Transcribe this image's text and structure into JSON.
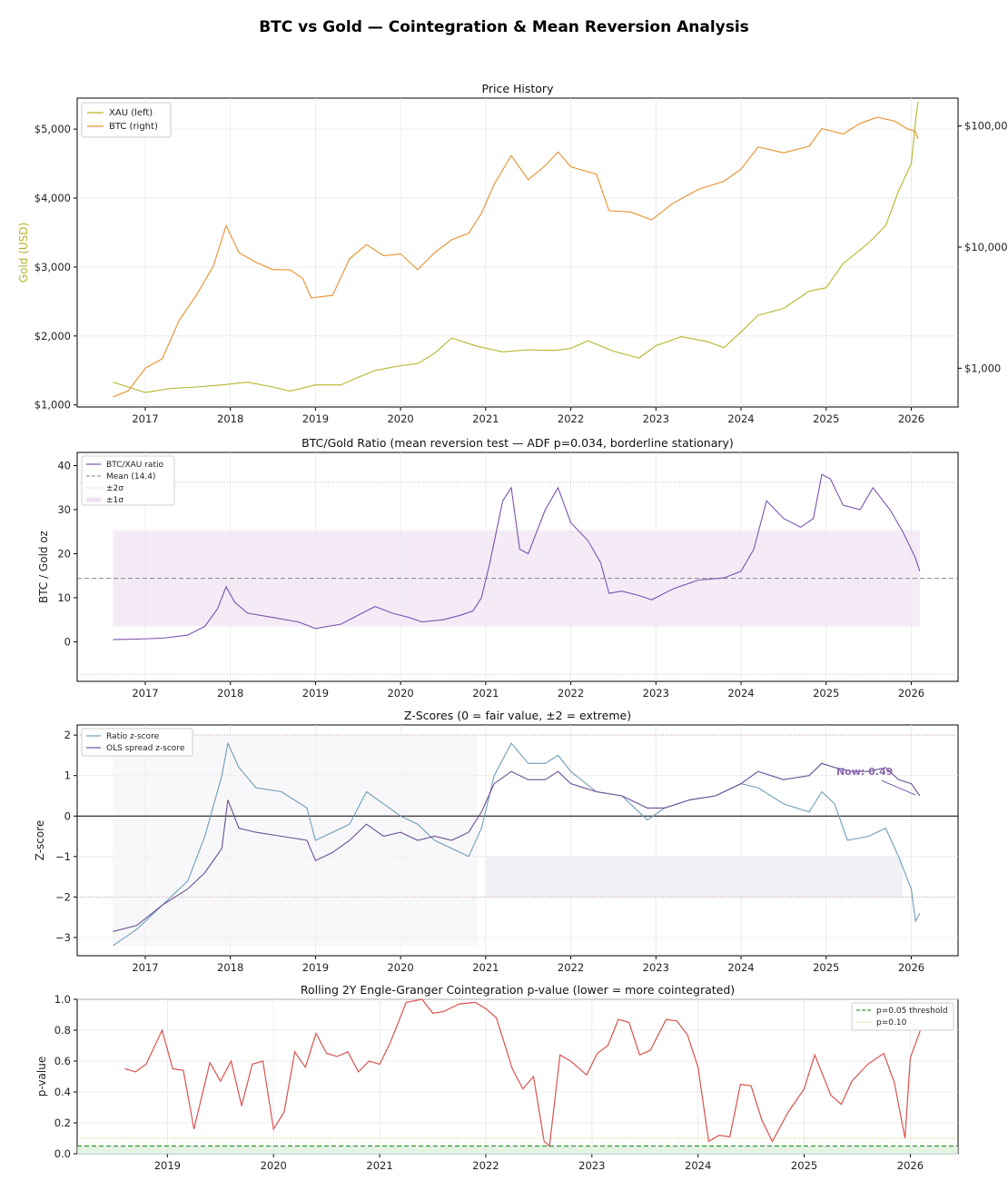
{
  "figure_title": "BTC vs Gold — Cointegration & Mean Reversion Analysis",
  "colors": {
    "gold": "#b5b52a",
    "btc": "#e8902a",
    "ratio": "#7a52b0",
    "ratio_z": "#6f9db8",
    "ols_z": "#6b4f94",
    "pval": "#d9534f",
    "threshold": "#2e9a2e",
    "grid": "#e8e8e8"
  },
  "chart_data": [
    {
      "id": "price",
      "type": "line",
      "title": "Price History",
      "ylabel": "Gold (USD)",
      "ylabel_right": "",
      "x_ticks": [
        "2017",
        "2018",
        "2019",
        "2020",
        "2021",
        "2022",
        "2023",
        "2024",
        "2025",
        "2026"
      ],
      "y_ticks_left": [
        "$1,000",
        "$2,000",
        "$3,000",
        "$4,000",
        "$5,000"
      ],
      "y_ticks_right": [
        "$1,000",
        "$10,000",
        "$100,00"
      ],
      "ylim_left": [
        970,
        5450
      ],
      "ylim_right_log10": [
        2.68,
        5.23
      ],
      "legend": [
        "XAU (left)",
        "BTC (right)"
      ],
      "series": [
        {
          "name": "XAU (left)",
          "axis": "left",
          "x": [
            2016.62,
            2016.8,
            2017.0,
            2017.3,
            2017.6,
            2017.9,
            2018.2,
            2018.5,
            2018.7,
            2019.0,
            2019.3,
            2019.5,
            2019.7,
            2020.0,
            2020.2,
            2020.4,
            2020.6,
            2020.9,
            2021.2,
            2021.5,
            2021.8,
            2022.0,
            2022.2,
            2022.5,
            2022.8,
            2023.0,
            2023.3,
            2023.6,
            2023.8,
            2024.0,
            2024.2,
            2024.5,
            2024.8,
            2025.0,
            2025.2,
            2025.5,
            2025.7,
            2025.85,
            2026.0,
            2026.05,
            2026.08
          ],
          "y": [
            1330,
            1260,
            1180,
            1240,
            1260,
            1290,
            1330,
            1260,
            1200,
            1290,
            1290,
            1400,
            1500,
            1570,
            1600,
            1750,
            1970,
            1850,
            1770,
            1800,
            1790,
            1820,
            1930,
            1780,
            1680,
            1860,
            1990,
            1920,
            1830,
            2060,
            2300,
            2400,
            2650,
            2700,
            3050,
            3350,
            3600,
            4100,
            4500,
            5100,
            5400
          ]
        },
        {
          "name": "BTC (right)",
          "axis": "right",
          "x": [
            2016.62,
            2016.8,
            2017.0,
            2017.2,
            2017.4,
            2017.6,
            2017.8,
            2017.95,
            2018.1,
            2018.3,
            2018.5,
            2018.7,
            2018.85,
            2018.95,
            2019.2,
            2019.4,
            2019.6,
            2019.8,
            2020.0,
            2020.2,
            2020.4,
            2020.6,
            2020.8,
            2020.95,
            2021.1,
            2021.3,
            2021.5,
            2021.7,
            2021.85,
            2022.0,
            2022.3,
            2022.45,
            2022.7,
            2022.95,
            2023.2,
            2023.5,
            2023.8,
            2024.0,
            2024.2,
            2024.5,
            2024.8,
            2024.95,
            2025.2,
            2025.4,
            2025.6,
            2025.8,
            2025.95,
            2026.05,
            2026.08
          ],
          "y": [
            580,
            650,
            1000,
            1200,
            2500,
            4000,
            7000,
            15000,
            9000,
            7500,
            6500,
            6500,
            5500,
            3800,
            4000,
            8000,
            10500,
            8500,
            8800,
            6500,
            9000,
            11500,
            13000,
            19000,
            33000,
            57000,
            36000,
            47000,
            61000,
            46000,
            40000,
            20000,
            19500,
            16800,
            23000,
            30000,
            35000,
            44000,
            67000,
            60000,
            68000,
            95000,
            86000,
            105000,
            118000,
            110000,
            95000,
            90000,
            78000
          ]
        }
      ]
    },
    {
      "id": "ratio",
      "type": "line",
      "title": "BTC/Gold Ratio (mean reversion test — ADF p=0.034, borderline stationary)",
      "ylabel": "BTC / Gold oz",
      "x_ticks": [
        "2017",
        "2018",
        "2019",
        "2020",
        "2021",
        "2022",
        "2023",
        "2024",
        "2025",
        "2026"
      ],
      "y_ticks": [
        "0",
        "10",
        "20",
        "30",
        "40"
      ],
      "ylim": [
        -9,
        43
      ],
      "mean": 14.4,
      "sigma": 10.9,
      "legend": [
        "BTC/XAU ratio",
        "Mean (14.4)",
        "±2σ",
        "±1σ"
      ],
      "x": [
        2016.62,
        2016.9,
        2017.2,
        2017.5,
        2017.7,
        2017.85,
        2017.95,
        2018.05,
        2018.2,
        2018.5,
        2018.8,
        2019.0,
        2019.3,
        2019.5,
        2019.7,
        2019.9,
        2020.1,
        2020.25,
        2020.5,
        2020.7,
        2020.85,
        2020.95,
        2021.05,
        2021.2,
        2021.3,
        2021.4,
        2021.5,
        2021.7,
        2021.85,
        2022.0,
        2022.2,
        2022.35,
        2022.45,
        2022.6,
        2022.8,
        2022.95,
        2023.2,
        2023.5,
        2023.8,
        2024.0,
        2024.15,
        2024.3,
        2024.5,
        2024.7,
        2024.85,
        2024.95,
        2025.05,
        2025.2,
        2025.4,
        2025.55,
        2025.75,
        2025.9,
        2026.0,
        2026.05,
        2026.1
      ],
      "y": [
        0.5,
        0.6,
        0.8,
        1.5,
        3.5,
        7.5,
        12.5,
        9.0,
        6.5,
        5.5,
        4.5,
        3.0,
        4.0,
        6.0,
        8.0,
        6.5,
        5.5,
        4.5,
        5.0,
        6.0,
        7.0,
        10.0,
        18.0,
        32.0,
        35.0,
        21.0,
        20.0,
        30.0,
        35.0,
        27.0,
        23.0,
        18.0,
        11.0,
        11.5,
        10.5,
        9.5,
        12.0,
        14.0,
        14.5,
        16.0,
        21.0,
        32.0,
        28.0,
        26.0,
        28.0,
        38.0,
        37.0,
        31.0,
        30.0,
        35.0,
        30.0,
        25.0,
        21.0,
        19.0,
        16.0
      ]
    },
    {
      "id": "zscore",
      "type": "line",
      "title": "Z-Scores (0 = fair value, ±2 = extreme)",
      "ylabel": "Z-score",
      "x_ticks": [
        "2017",
        "2018",
        "2019",
        "2020",
        "2021",
        "2022",
        "2023",
        "2024",
        "2025",
        "2026"
      ],
      "y_ticks": [
        "−3",
        "−2",
        "−1",
        "0",
        "1",
        "2"
      ],
      "ylim": [
        -3.45,
        2.25
      ],
      "legend": [
        "Ratio z-score",
        "OLS spread z-score"
      ],
      "annotation": "Now: 0.49",
      "series": [
        {
          "name": "Ratio z-score",
          "x": [
            2016.62,
            2016.9,
            2017.2,
            2017.5,
            2017.7,
            2017.9,
            2017.97,
            2018.1,
            2018.3,
            2018.6,
            2018.9,
            2019.0,
            2019.2,
            2019.4,
            2019.6,
            2019.8,
            2020.0,
            2020.2,
            2020.4,
            2020.6,
            2020.8,
            2020.95,
            2021.1,
            2021.3,
            2021.5,
            2021.7,
            2021.85,
            2022.0,
            2022.3,
            2022.6,
            2022.9,
            2023.1,
            2023.4,
            2023.7,
            2024.0,
            2024.2,
            2024.5,
            2024.8,
            2024.95,
            2025.1,
            2025.25,
            2025.5,
            2025.7,
            2025.85,
            2026.0,
            2026.05,
            2026.1
          ],
          "y": [
            -3.2,
            -2.8,
            -2.2,
            -1.6,
            -0.5,
            1.0,
            1.8,
            1.2,
            0.7,
            0.6,
            0.2,
            -0.6,
            -0.4,
            -0.2,
            0.6,
            0.3,
            0.0,
            -0.2,
            -0.6,
            -0.8,
            -1.0,
            -0.3,
            1.0,
            1.8,
            1.3,
            1.3,
            1.5,
            1.1,
            0.6,
            0.5,
            -0.1,
            0.2,
            0.4,
            0.5,
            0.8,
            0.7,
            0.3,
            0.1,
            0.6,
            0.3,
            -0.6,
            -0.5,
            -0.3,
            -1.0,
            -1.8,
            -2.6,
            -2.4
          ]
        },
        {
          "name": "OLS spread z-score",
          "x": [
            2016.62,
            2016.9,
            2017.2,
            2017.5,
            2017.7,
            2017.9,
            2017.97,
            2018.1,
            2018.3,
            2018.6,
            2018.9,
            2019.0,
            2019.2,
            2019.4,
            2019.6,
            2019.8,
            2020.0,
            2020.2,
            2020.4,
            2020.6,
            2020.8,
            2020.95,
            2021.1,
            2021.3,
            2021.5,
            2021.7,
            2021.85,
            2022.0,
            2022.3,
            2022.6,
            2022.9,
            2023.1,
            2023.4,
            2023.7,
            2024.0,
            2024.2,
            2024.5,
            2024.8,
            2024.95,
            2025.1,
            2025.3,
            2025.5,
            2025.7,
            2025.85,
            2026.0,
            2026.1
          ],
          "y": [
            -2.85,
            -2.7,
            -2.2,
            -1.8,
            -1.4,
            -0.8,
            0.4,
            -0.3,
            -0.4,
            -0.5,
            -0.6,
            -1.1,
            -0.9,
            -0.6,
            -0.2,
            -0.5,
            -0.4,
            -0.6,
            -0.5,
            -0.6,
            -0.4,
            0.1,
            0.8,
            1.1,
            0.9,
            0.9,
            1.1,
            0.8,
            0.6,
            0.5,
            0.2,
            0.2,
            0.4,
            0.5,
            0.8,
            1.1,
            0.9,
            1.0,
            1.3,
            1.2,
            1.1,
            1.1,
            1.2,
            0.9,
            0.8,
            0.5
          ]
        }
      ]
    },
    {
      "id": "pvalue",
      "type": "line",
      "title": "Rolling 2Y Engle-Granger Cointegration p-value (lower = more cointegrated)",
      "ylabel": "p-value",
      "x_ticks": [
        "2019",
        "2020",
        "2021",
        "2022",
        "2023",
        "2024",
        "2025",
        "2026"
      ],
      "y_ticks": [
        "0.0",
        "0.2",
        "0.4",
        "0.6",
        "0.8",
        "1.0"
      ],
      "ylim": [
        0,
        1
      ],
      "legend": [
        "p=0.05 threshold",
        "p=0.10"
      ],
      "threshold_1": 0.05,
      "threshold_2": 0.1,
      "x": [
        2018.6,
        2018.7,
        2018.8,
        2018.95,
        2019.05,
        2019.15,
        2019.25,
        2019.4,
        2019.5,
        2019.6,
        2019.7,
        2019.8,
        2019.9,
        2020.0,
        2020.1,
        2020.2,
        2020.3,
        2020.4,
        2020.5,
        2020.6,
        2020.7,
        2020.8,
        2020.9,
        2021.0,
        2021.1,
        2021.25,
        2021.4,
        2021.5,
        2021.6,
        2021.75,
        2021.9,
        2022.0,
        2022.1,
        2022.25,
        2022.35,
        2022.45,
        2022.55,
        2022.6,
        2022.7,
        2022.8,
        2022.95,
        2023.05,
        2023.15,
        2023.25,
        2023.35,
        2023.45,
        2023.55,
        2023.7,
        2023.8,
        2023.9,
        2024.0,
        2024.1,
        2024.2,
        2024.3,
        2024.4,
        2024.5,
        2024.6,
        2024.7,
        2024.85,
        2025.0,
        2025.1,
        2025.25,
        2025.35,
        2025.45,
        2025.6,
        2025.75,
        2025.85,
        2025.95,
        2026.0,
        2026.1
      ],
      "y": [
        0.55,
        0.53,
        0.58,
        0.8,
        0.55,
        0.54,
        0.16,
        0.59,
        0.47,
        0.6,
        0.31,
        0.58,
        0.6,
        0.16,
        0.27,
        0.66,
        0.56,
        0.78,
        0.65,
        0.63,
        0.66,
        0.53,
        0.6,
        0.58,
        0.72,
        0.98,
        1.0,
        0.91,
        0.92,
        0.97,
        0.98,
        0.94,
        0.88,
        0.55,
        0.42,
        0.5,
        0.08,
        0.05,
        0.64,
        0.6,
        0.51,
        0.65,
        0.7,
        0.87,
        0.85,
        0.64,
        0.67,
        0.87,
        0.86,
        0.77,
        0.56,
        0.08,
        0.12,
        0.11,
        0.45,
        0.44,
        0.22,
        0.08,
        0.27,
        0.42,
        0.64,
        0.38,
        0.32,
        0.47,
        0.58,
        0.65,
        0.46,
        0.1,
        0.62,
        0.81
      ]
    }
  ]
}
